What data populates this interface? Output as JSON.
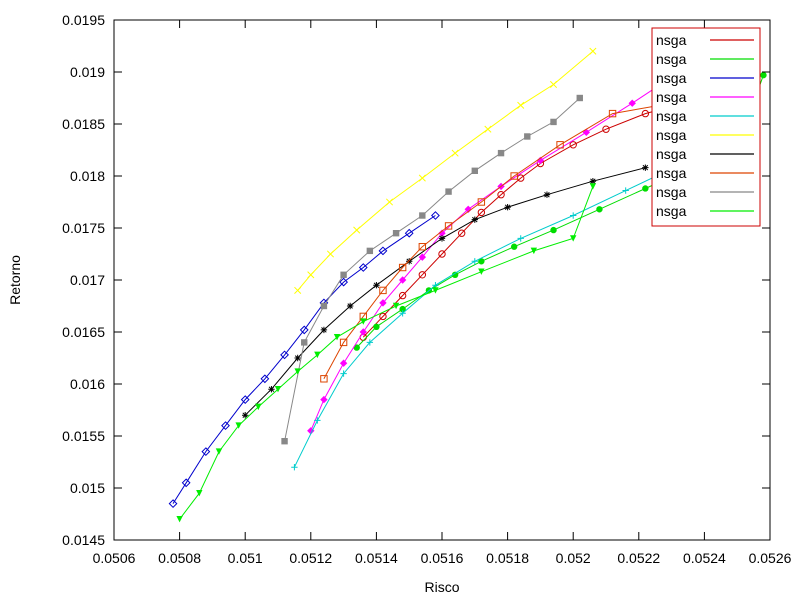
{
  "chart_data": {
    "type": "scatter",
    "xlabel": "Risco",
    "ylabel": "Retorno",
    "xlim": [
      0.0506,
      0.0526
    ],
    "ylim": [
      0.0145,
      0.0195
    ],
    "x_ticks": [
      "0.0506",
      "0.0508",
      "0.051",
      "0.0512",
      "0.0514",
      "0.0516",
      "0.0518",
      "0.052",
      "0.0522",
      "0.0524",
      "0.0526"
    ],
    "y_ticks": [
      "0.0145",
      "0.015",
      "0.0155",
      "0.016",
      "0.0165",
      "0.017",
      "0.0175",
      "0.018",
      "0.0185",
      "0.019",
      "0.0195"
    ],
    "grid": false,
    "legend_position": "top-right",
    "series": [
      {
        "name": "nsga",
        "color": "#cc0000",
        "marker": "circle-open",
        "x": [
          0.05136,
          0.05142,
          0.05148,
          0.05154,
          0.0516,
          0.05166,
          0.05172,
          0.05178,
          0.05184,
          0.0519,
          0.052,
          0.0521,
          0.05222,
          0.05236,
          0.05252
        ],
        "y": [
          0.01645,
          0.01665,
          0.01685,
          0.01705,
          0.01725,
          0.01745,
          0.01765,
          0.01782,
          0.01798,
          0.01812,
          0.0183,
          0.01845,
          0.0186,
          0.01872,
          0.01885
        ]
      },
      {
        "name": "nsga",
        "color": "#00dd00",
        "marker": "circle",
        "x": [
          0.05134,
          0.0514,
          0.05148,
          0.05156,
          0.05164,
          0.05172,
          0.05182,
          0.05194,
          0.05208,
          0.05222,
          0.05236,
          0.0525,
          0.05258
        ],
        "y": [
          0.01635,
          0.01655,
          0.01672,
          0.0169,
          0.01705,
          0.01718,
          0.01732,
          0.01748,
          0.01768,
          0.01788,
          0.01808,
          0.01826,
          0.01897
        ]
      },
      {
        "name": "nsga",
        "color": "#0000cc",
        "marker": "diamond-open",
        "x": [
          0.05078,
          0.05082,
          0.05088,
          0.05094,
          0.051,
          0.05106,
          0.05112,
          0.05118,
          0.05124,
          0.0513,
          0.05136,
          0.05142,
          0.0515,
          0.05158
        ],
        "y": [
          0.01485,
          0.01505,
          0.01535,
          0.0156,
          0.01585,
          0.01605,
          0.01628,
          0.01652,
          0.01678,
          0.01698,
          0.01712,
          0.01728,
          0.01745,
          0.01762
        ]
      },
      {
        "name": "nsga",
        "color": "#ff00ff",
        "marker": "diamond",
        "x": [
          0.0512,
          0.05124,
          0.0513,
          0.05136,
          0.05142,
          0.05148,
          0.05154,
          0.0516,
          0.05168,
          0.05178,
          0.0519,
          0.05204,
          0.05218,
          0.0523
        ],
        "y": [
          0.01555,
          0.01585,
          0.0162,
          0.0165,
          0.01678,
          0.017,
          0.01722,
          0.01745,
          0.01768,
          0.0179,
          0.01815,
          0.01842,
          0.0187,
          0.01895
        ]
      },
      {
        "name": "nsga",
        "color": "#00cccc",
        "marker": "plus",
        "x": [
          0.05115,
          0.05122,
          0.0513,
          0.05138,
          0.05148,
          0.05158,
          0.0517,
          0.05184,
          0.052,
          0.05216,
          0.05232,
          0.05246
        ],
        "y": [
          0.0152,
          0.01565,
          0.0161,
          0.0164,
          0.01668,
          0.01695,
          0.01718,
          0.0174,
          0.01762,
          0.01786,
          0.0181,
          0.0185
        ]
      },
      {
        "name": "nsga",
        "color": "#ffff00",
        "marker": "x",
        "x": [
          0.05116,
          0.0512,
          0.05126,
          0.05134,
          0.05144,
          0.05154,
          0.05164,
          0.05174,
          0.05184,
          0.05194,
          0.05206
        ],
        "y": [
          0.0169,
          0.01705,
          0.01725,
          0.01748,
          0.01775,
          0.01798,
          0.01822,
          0.01845,
          0.01868,
          0.01888,
          0.0192
        ]
      },
      {
        "name": "nsga",
        "color": "#000000",
        "marker": "asterisk",
        "x": [
          0.051,
          0.05108,
          0.05116,
          0.05124,
          0.05132,
          0.0514,
          0.0515,
          0.0516,
          0.0517,
          0.0518,
          0.05192,
          0.05206,
          0.05222
        ],
        "y": [
          0.0157,
          0.01595,
          0.01625,
          0.01652,
          0.01675,
          0.01695,
          0.01718,
          0.0174,
          0.01758,
          0.0177,
          0.01782,
          0.01795,
          0.01808
        ]
      },
      {
        "name": "nsga",
        "color": "#dd4400",
        "marker": "square-open",
        "x": [
          0.05124,
          0.0513,
          0.05136,
          0.05142,
          0.05148,
          0.05154,
          0.05162,
          0.05172,
          0.05182,
          0.05196,
          0.05212,
          0.0523,
          0.05246
        ],
        "y": [
          0.01605,
          0.0164,
          0.01665,
          0.0169,
          0.01712,
          0.01732,
          0.01752,
          0.01775,
          0.018,
          0.0183,
          0.0186,
          0.0187,
          0.0188
        ]
      },
      {
        "name": "nsga",
        "color": "#888888",
        "marker": "square",
        "x": [
          0.05112,
          0.05118,
          0.05124,
          0.0513,
          0.05138,
          0.05146,
          0.05154,
          0.05162,
          0.0517,
          0.05178,
          0.05186,
          0.05194,
          0.05202
        ],
        "y": [
          0.01545,
          0.0164,
          0.01675,
          0.01705,
          0.01728,
          0.01745,
          0.01762,
          0.01785,
          0.01805,
          0.01822,
          0.01838,
          0.01852,
          0.01875
        ]
      },
      {
        "name": "nsga",
        "color": "#00ee00",
        "marker": "triangle-down",
        "x": [
          0.0508,
          0.05086,
          0.05092,
          0.05098,
          0.05104,
          0.0511,
          0.05116,
          0.05122,
          0.05128,
          0.05136,
          0.05146,
          0.05158,
          0.05172,
          0.05188,
          0.052,
          0.05206
        ],
        "y": [
          0.0147,
          0.01495,
          0.01535,
          0.0156,
          0.01578,
          0.01595,
          0.01612,
          0.01628,
          0.01645,
          0.0166,
          0.01675,
          0.0169,
          0.01708,
          0.01728,
          0.0174,
          0.0179
        ]
      }
    ]
  }
}
